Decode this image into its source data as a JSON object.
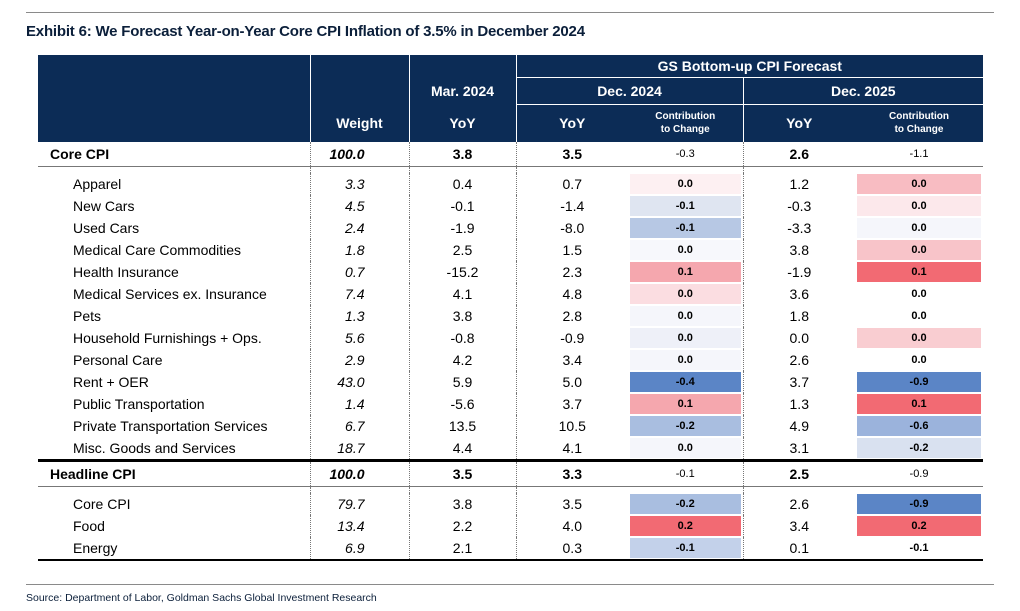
{
  "exhibit": {
    "title": "Exhibit 6: We Forecast Year-on-Year Core CPI Inflation of 3.5% in December 2024"
  },
  "header": {
    "forecast_group": "GS Bottom-up CPI Forecast",
    "col_weight": "Weight",
    "col_mar2024": "Mar. 2024",
    "col_dec2024": "Dec. 2024",
    "col_dec2025": "Dec. 2025",
    "yoy": "YoY",
    "contribution_l1": "Contribution",
    "contribution_l2": "to Change"
  },
  "core_summary": {
    "name": "Core CPI",
    "weight": "100.0",
    "mar": "3.8",
    "d24": "3.5",
    "c24": "-0.3",
    "d25": "2.6",
    "c25": "-1.1"
  },
  "core_rows": [
    {
      "name": "Apparel",
      "weight": "3.3",
      "mar": "0.4",
      "d24": "0.7",
      "c24": "0.0",
      "c24_color": "#fdf0f2",
      "d25": "1.2",
      "c25": "0.0",
      "c25_color": "#f8bcc2"
    },
    {
      "name": "New Cars",
      "weight": "4.5",
      "mar": "-0.1",
      "d24": "-1.4",
      "c24": "-0.1",
      "c24_color": "#dfe5f1",
      "d25": "-0.3",
      "c25": "0.0",
      "c25_color": "#fce8eb"
    },
    {
      "name": "Used Cars",
      "weight": "2.4",
      "mar": "-1.9",
      "d24": "-8.0",
      "c24": "-0.1",
      "c24_color": "#b7c8e4",
      "d25": "-3.3",
      "c25": "0.0",
      "c25_color": "#f5f6fb"
    },
    {
      "name": "Medical Care Commodities",
      "weight": "1.8",
      "mar": "2.5",
      "d24": "1.5",
      "c24": "0.0",
      "c24_color": "#f7f8fc",
      "d25": "3.8",
      "c25": "0.0",
      "c25_color": "#f8c4c9"
    },
    {
      "name": "Health Insurance",
      "weight": "0.7",
      "mar": "-15.2",
      "d24": "2.3",
      "c24": "0.1",
      "c24_color": "#f5a7ae",
      "d25": "-1.9",
      "c25": "0.1",
      "c25_color": "#f26a73"
    },
    {
      "name": "Medical Services ex. Insurance",
      "weight": "7.4",
      "mar": "4.1",
      "d24": "4.8",
      "c24": "0.0",
      "c24_color": "#fbdde1",
      "d25": "3.6",
      "c25": "0.0",
      "c25_color": "#ffffff"
    },
    {
      "name": "Pets",
      "weight": "1.3",
      "mar": "3.8",
      "d24": "2.8",
      "c24": "0.0",
      "c24_color": "#f5f6fb",
      "d25": "1.8",
      "c25": "0.0",
      "c25_color": "#ffffff"
    },
    {
      "name": "Household Furnishings + Ops.",
      "weight": "5.6",
      "mar": "-0.8",
      "d24": "-0.9",
      "c24": "0.0",
      "c24_color": "#eef0f8",
      "d25": "0.0",
      "c25": "0.0",
      "c25_color": "#f9cdd1"
    },
    {
      "name": "Personal Care",
      "weight": "2.9",
      "mar": "4.2",
      "d24": "3.4",
      "c24": "0.0",
      "c24_color": "#f5f6fb",
      "d25": "2.6",
      "c25": "0.0",
      "c25_color": "#ffffff"
    },
    {
      "name": "Rent + OER",
      "weight": "43.0",
      "mar": "5.9",
      "d24": "5.0",
      "c24": "-0.4",
      "c24_color": "#5b85c6",
      "d25": "3.7",
      "c25": "-0.9",
      "c25_color": "#5b85c6"
    },
    {
      "name": "Public Transportation",
      "weight": "1.4",
      "mar": "-5.6",
      "d24": "3.7",
      "c24": "0.1",
      "c24_color": "#f5a7ae",
      "d25": "1.3",
      "c25": "0.1",
      "c25_color": "#f26a73"
    },
    {
      "name": "Private Transportation Services",
      "weight": "6.7",
      "mar": "13.5",
      "d24": "10.5",
      "c24": "-0.2",
      "c24_color": "#a9bee0",
      "d25": "4.9",
      "c25": "-0.6",
      "c25_color": "#9bb3dc"
    },
    {
      "name": "Misc. Goods and Services",
      "weight": "18.7",
      "mar": "4.4",
      "d24": "4.1",
      "c24": "0.0",
      "c24_color": "#f5f6fb",
      "d25": "3.1",
      "c25": "-0.2",
      "c25_color": "#d9e1f0"
    }
  ],
  "headline_summary": {
    "name": "Headline CPI",
    "weight": "100.0",
    "mar": "3.5",
    "d24": "3.3",
    "c24": "-0.1",
    "d25": "2.5",
    "c25": "-0.9"
  },
  "headline_rows": [
    {
      "name": "Core CPI",
      "weight": "79.7",
      "mar": "3.8",
      "d24": "3.5",
      "c24": "-0.2",
      "c24_color": "#a9bee0",
      "d25": "2.6",
      "c25": "-0.9",
      "c25_color": "#5b85c6"
    },
    {
      "name": "Food",
      "weight": "13.4",
      "mar": "2.2",
      "d24": "4.0",
      "c24": "0.2",
      "c24_color": "#f26a73",
      "d25": "3.4",
      "c25": "0.2",
      "c25_color": "#f26a73"
    },
    {
      "name": "Energy",
      "weight": "6.9",
      "mar": "2.1",
      "d24": "0.3",
      "c24": "-0.1",
      "c24_color": "#c3d1ea",
      "d25": "0.1",
      "c25": "-0.1",
      "c25_color": "#ffffff"
    }
  ],
  "source": "Source: Department of Labor, Goldman Sachs Global Investment Research"
}
